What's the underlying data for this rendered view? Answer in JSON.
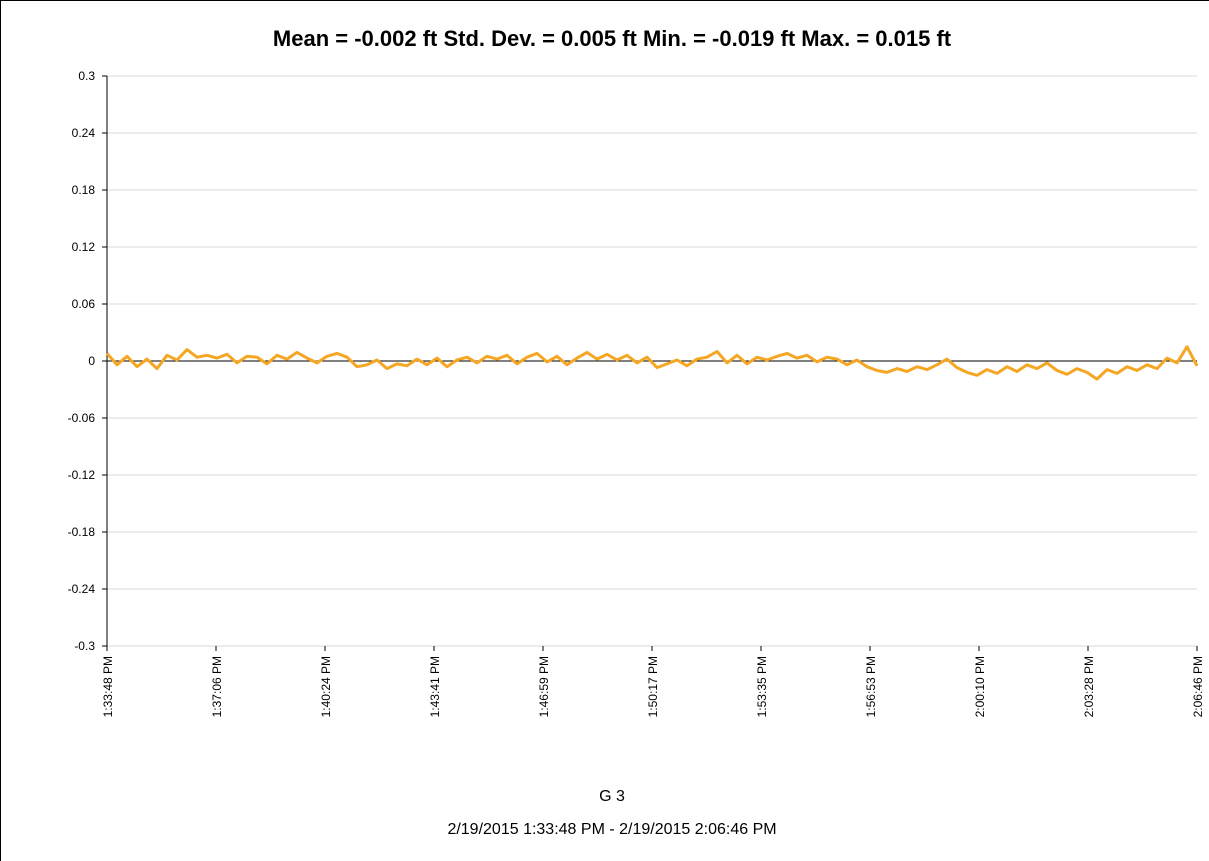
{
  "chart_data": {
    "type": "line",
    "title": "Mean = -0.002 ft  Std. Dev. = 0.005 ft  Min. = -0.019 ft  Max. = 0.015 ft",
    "xlabel": "G 3",
    "xlabel2": "2/19/2015 1:33:48 PM - 2/19/2015 2:06:46 PM",
    "xticks": [
      "1:33:48 PM",
      "1:37:06 PM",
      "1:40:24 PM",
      "1:43:41 PM",
      "1:46:59 PM",
      "1:50:17 PM",
      "1:53:35 PM",
      "1:56:53 PM",
      "2:00:10 PM",
      "2:03:28 PM",
      "2:06:46 PM"
    ],
    "ylim": [
      -0.3,
      0.3
    ],
    "yticks": [
      0.3,
      0.24,
      0.18,
      0.12,
      0.06,
      0,
      -0.06,
      -0.12,
      -0.18,
      -0.24,
      -0.3
    ],
    "grid": true,
    "series": [
      {
        "color": "#f5a623",
        "values": [
          0.008,
          -0.004,
          0.005,
          -0.006,
          0.002,
          -0.008,
          0.006,
          0.001,
          0.012,
          0.004,
          0.006,
          0.003,
          0.007,
          -0.002,
          0.005,
          0.004,
          -0.003,
          0.006,
          0.002,
          0.009,
          0.003,
          -0.002,
          0.005,
          0.008,
          0.004,
          -0.006,
          -0.004,
          0.001,
          -0.008,
          -0.003,
          -0.005,
          0.002,
          -0.004,
          0.003,
          -0.006,
          0.001,
          0.004,
          -0.002,
          0.005,
          0.002,
          0.006,
          -0.003,
          0.004,
          0.008,
          -0.001,
          0.005,
          -0.004,
          0.003,
          0.009,
          0.002,
          0.007,
          0.001,
          0.006,
          -0.002,
          0.004,
          -0.007,
          -0.003,
          0.001,
          -0.005,
          0.002,
          0.004,
          0.01,
          -0.002,
          0.006,
          -0.003,
          0.004,
          0.001,
          0.005,
          0.008,
          0.003,
          0.006,
          -0.001,
          0.004,
          0.002,
          -0.004,
          0.001,
          -0.006,
          -0.01,
          -0.012,
          -0.008,
          -0.011,
          -0.006,
          -0.009,
          -0.004,
          0.002,
          -0.007,
          -0.012,
          -0.015,
          -0.009,
          -0.013,
          -0.006,
          -0.011,
          -0.004,
          -0.008,
          -0.002,
          -0.01,
          -0.014,
          -0.008,
          -0.012,
          -0.019,
          -0.009,
          -0.013,
          -0.006,
          -0.01,
          -0.004,
          -0.008,
          0.003,
          -0.002,
          0.015,
          -0.005
        ]
      }
    ]
  }
}
